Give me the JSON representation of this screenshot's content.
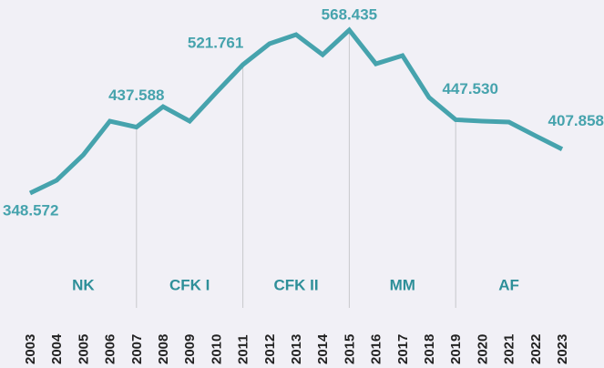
{
  "chart_data": {
    "type": "line",
    "categories": [
      "2003",
      "2004",
      "2005",
      "2006",
      "2007",
      "2008",
      "2009",
      "2010",
      "2011",
      "2012",
      "2013",
      "2014",
      "2015",
      "2016",
      "2017",
      "2018",
      "2019",
      "2020",
      "2021",
      "2022",
      "2023"
    ],
    "series": [
      {
        "name": null,
        "color": "#46a3ad",
        "values": [
          348.572,
          365.8,
          400.1,
          445.6,
          437.588,
          465.2,
          445.6,
          484.2,
          521.761,
          550.0,
          562.3,
          535.2,
          568.435,
          522.9,
          534.0,
          477.5,
          447.53,
          445.6,
          444.4,
          425.9,
          407.858
        ],
        "value_labels": [
          "348.572",
          null,
          null,
          null,
          "437.588",
          null,
          null,
          null,
          "521.761",
          null,
          null,
          null,
          "568.435",
          null,
          null,
          null,
          "447.530",
          null,
          null,
          null,
          "407.858"
        ]
      }
    ],
    "periods": [
      {
        "name": "NK",
        "from": "2003",
        "to": "2007"
      },
      {
        "name": "CFK I",
        "from": "2007",
        "to": "2011"
      },
      {
        "name": "CFK II",
        "from": "2011",
        "to": "2015"
      },
      {
        "name": "MM",
        "from": "2015",
        "to": "2019"
      },
      {
        "name": "AF",
        "from": "2019",
        "to": "2023"
      }
    ]
  }
}
